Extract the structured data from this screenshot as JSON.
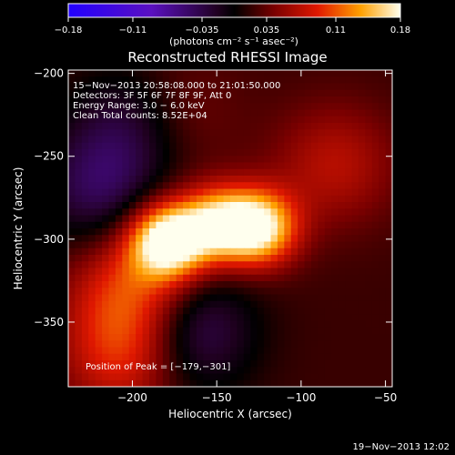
{
  "chart_data": {
    "type": "heatmap",
    "title": "Reconstructed RHESSI Image",
    "xlabel": "Heliocentric X (arcsec)",
    "ylabel": "Heliocentric Y (arcsec)",
    "xlim": [
      -238,
      -46
    ],
    "ylim": [
      -389,
      -198
    ],
    "x_ticks": [
      -200,
      -150,
      -100,
      -50
    ],
    "y_ticks": [
      -200,
      -250,
      -300,
      -350
    ],
    "x_tick_labels": [
      "−200",
      "−150",
      "−100",
      "−50"
    ],
    "y_tick_labels": [
      "−200",
      "−250",
      "−300",
      "−350"
    ],
    "colorbar": {
      "range": [
        -0.18,
        0.18
      ],
      "ticks": [
        -0.18,
        -0.11,
        -0.035,
        0.035,
        0.11,
        0.18
      ],
      "tick_labels": [
        "−0.18",
        "−0.11",
        "−0.035",
        "0.035",
        "0.11",
        "0.18"
      ],
      "unit_label": "(photons cm⁻² s⁻¹ asec⁻²)"
    },
    "colors": {
      "negative": "#2200ff",
      "zero": "#000000",
      "positive_peak": "#ffffee"
    },
    "annotations": [
      "15−Nov−2013 20:58:08.000 to 21:01:50.000",
      "Detectors: 3F 5F 6F 7F 8F 9F, Att 0",
      "Energy Range: 3.0 − 6.0 keV",
      "Clean    Total counts: 8.52E+04"
    ],
    "peak_label": "Position of Peak = [−179,−301]",
    "peak": [
      -179,
      -301
    ],
    "sources": [
      {
        "x": -179,
        "y": -301,
        "value": 0.18
      },
      {
        "x": -150,
        "y": -291,
        "value": 0.13
      },
      {
        "x": -125,
        "y": -293,
        "value": 0.16
      },
      {
        "x": -200,
        "y": -330,
        "value": 0.08
      },
      {
        "x": -205,
        "y": -370,
        "value": 0.07
      },
      {
        "x": -80,
        "y": -255,
        "value": 0.05
      },
      {
        "x": -175,
        "y": -225,
        "value": 0.03
      },
      {
        "x": -220,
        "y": -270,
        "value": -0.06
      },
      {
        "x": -200,
        "y": -230,
        "value": -0.05
      },
      {
        "x": -165,
        "y": -355,
        "value": -0.07
      }
    ]
  },
  "footer": {
    "timestamp": "19−Nov−2013 12:02"
  }
}
